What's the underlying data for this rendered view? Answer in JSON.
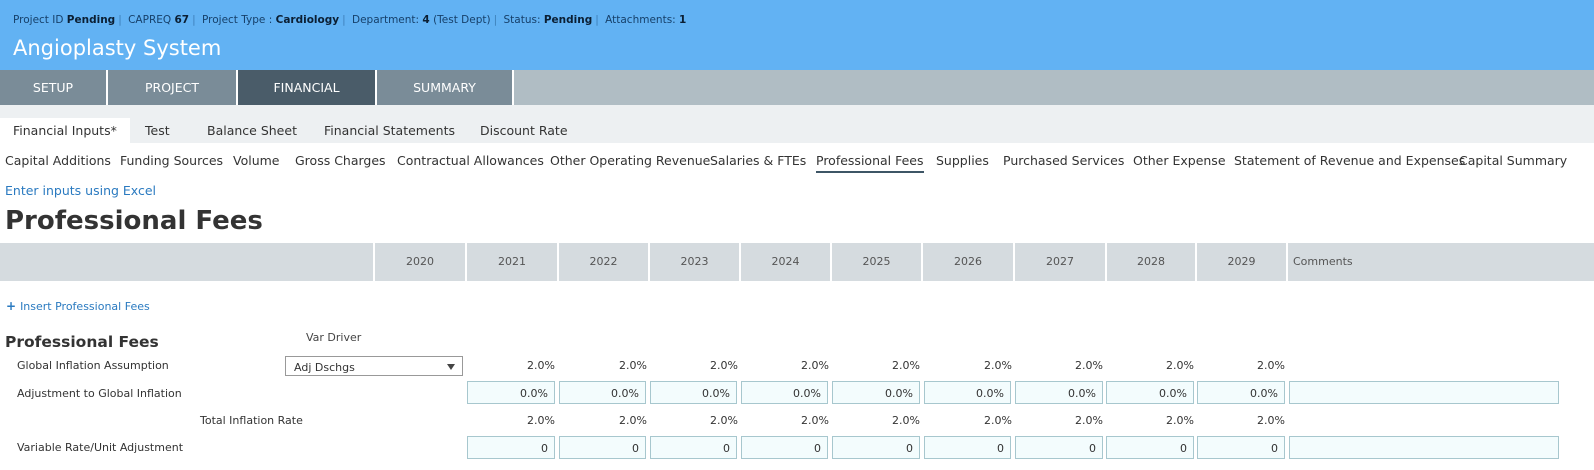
{
  "header": {
    "meta": [
      {
        "label": "Project ID",
        "value": "Pending",
        "suffix": ""
      },
      {
        "label": "CAPREQ",
        "value": "67",
        "suffix": ""
      },
      {
        "label": "Project Type :",
        "value": "Cardiology",
        "suffix": ""
      },
      {
        "label": "Department:",
        "value": "4",
        "suffix": "(Test Dept)"
      },
      {
        "label": "Status:",
        "value": "Pending",
        "suffix": ""
      },
      {
        "label": "Attachments:",
        "value": "1",
        "suffix": ""
      }
    ],
    "title": "Angioplasty System"
  },
  "main_tabs": [
    "SETUP",
    "PROJECT",
    "FINANCIAL",
    "SUMMARY"
  ],
  "active_main_tab": "FINANCIAL",
  "sub_tabs": [
    "Financial Inputs*",
    "Test",
    "Balance Sheet",
    "Financial Statements",
    "Discount Rate"
  ],
  "sections": [
    "Capital Additions",
    "Funding Sources",
    "Volume",
    "Gross Charges",
    "Contractual Allowances",
    "Other Operating Revenue",
    "Salaries & FTEs",
    "Professional Fees",
    "Supplies",
    "Purchased Services",
    "Other Expense",
    "Statement of Revenue and Expenses",
    "Capital Summary"
  ],
  "active_section": "Professional Fees",
  "excel_link": "Enter inputs using Excel",
  "page_title": "Professional Fees",
  "years": [
    "2020",
    "2021",
    "2022",
    "2023",
    "2024",
    "2025",
    "2026",
    "2027",
    "2028",
    "2029"
  ],
  "comments_header": "Comments",
  "insert_link": "Insert Professional Fees",
  "section_title": "Professional Fees",
  "var_driver_label": "Var Driver",
  "rows": {
    "global_inflation": {
      "label": "Global Inflation Assumption",
      "driver": "Adj Dschgs",
      "values": [
        "2.0%",
        "2.0%",
        "2.0%",
        "2.0%",
        "2.0%",
        "2.0%",
        "2.0%",
        "2.0%",
        "2.0%"
      ]
    },
    "adjustment": {
      "label": "Adjustment to Global Inflation",
      "values": [
        "0.0%",
        "0.0%",
        "0.0%",
        "0.0%",
        "0.0%",
        "0.0%",
        "0.0%",
        "0.0%",
        "0.0%"
      ]
    },
    "total_inflation": {
      "label": "Total Inflation Rate",
      "values": [
        "2.0%",
        "2.0%",
        "2.0%",
        "2.0%",
        "2.0%",
        "2.0%",
        "2.0%",
        "2.0%",
        "2.0%"
      ]
    },
    "variable_rate": {
      "label": "Variable Rate/Unit Adjustment",
      "values": [
        "0",
        "0",
        "0",
        "0",
        "0",
        "0",
        "0",
        "0",
        "0"
      ]
    }
  },
  "colors": {
    "header_bg": "#62b2f3",
    "active_tab": "#4a5c69",
    "tab": "#7a8c98",
    "link": "#2a7ac0",
    "input_bg": "#f3fcfd"
  }
}
